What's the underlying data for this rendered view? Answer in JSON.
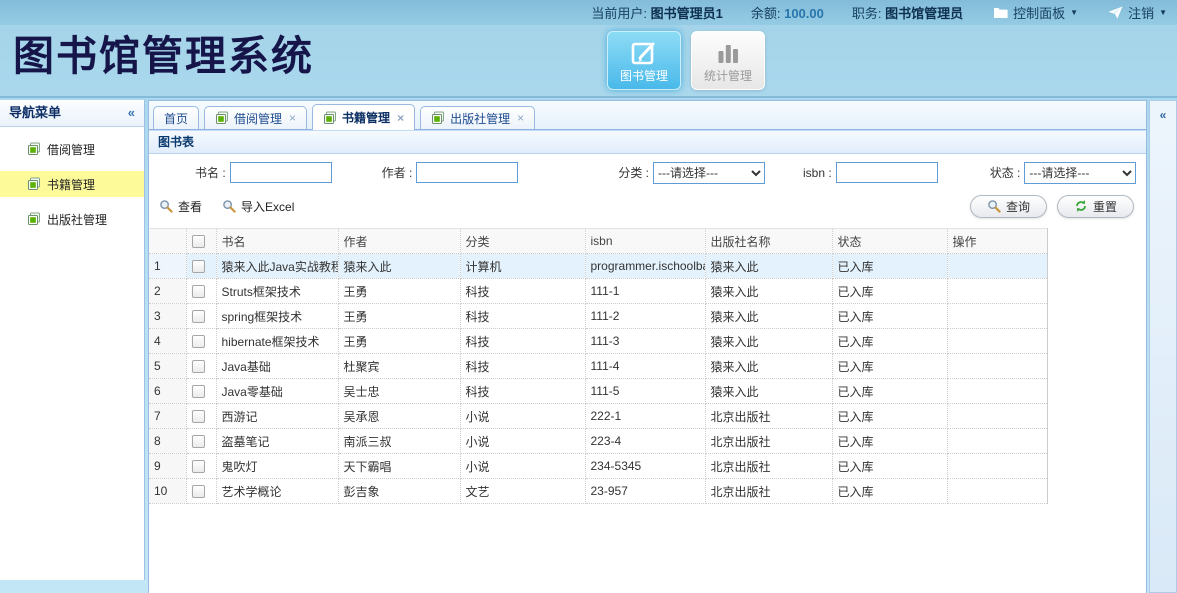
{
  "topbar": {
    "current_user_label": "当前用户:",
    "current_user": "图书管理员1",
    "balance_label": "余额:",
    "balance": "100.00",
    "role_label": "职务:",
    "role": "图书馆管理员",
    "control_panel": "控制面板",
    "logout": "注销",
    "caret_glyph": "▼"
  },
  "header": {
    "logo": "图书馆管理系统",
    "modules": [
      {
        "label": "图书管理",
        "icon": "edit",
        "active": true,
        "name": "books-module-button"
      },
      {
        "label": "统计管理",
        "icon": "bars",
        "active": false,
        "name": "stats-module-button"
      }
    ]
  },
  "sidebar": {
    "title": "导航菜单",
    "collapse_glyph": "«",
    "items": [
      {
        "label": "借阅管理",
        "active": false,
        "name": "sidebar-item-borrow-mgmt"
      },
      {
        "label": "书籍管理",
        "active": true,
        "name": "sidebar-item-book-mgmt"
      },
      {
        "label": "出版社管理",
        "active": false,
        "name": "sidebar-item-publisher-mgmt"
      }
    ]
  },
  "tabs": [
    {
      "label": "首页",
      "icon": false,
      "closable": false,
      "active": false,
      "name": "tab-home"
    },
    {
      "label": "借阅管理",
      "icon": true,
      "closable": true,
      "active": false,
      "name": "tab-borrow-mgmt"
    },
    {
      "label": "书籍管理",
      "icon": true,
      "closable": true,
      "active": true,
      "name": "tab-book-mgmt"
    },
    {
      "label": "出版社管理",
      "icon": true,
      "closable": true,
      "active": false,
      "name": "tab-publisher-mgmt"
    }
  ],
  "panel": {
    "title": "图书表"
  },
  "east": {
    "collapse_glyph": "«"
  },
  "search": {
    "fields": [
      {
        "label": "书名 :",
        "type": "input",
        "value": "",
        "name": "book-name-input"
      },
      {
        "label": "作者 :",
        "type": "input",
        "value": "",
        "name": "author-input"
      },
      {
        "label": "分类 :",
        "type": "select",
        "value": "---请选择---",
        "name": "category-select"
      },
      {
        "label": "isbn :",
        "type": "input",
        "value": "",
        "name": "isbn-input"
      },
      {
        "label": "状态 :",
        "type": "select",
        "value": "---请选择---",
        "name": "status-select"
      }
    ],
    "buttons_left": [
      {
        "label": "查看",
        "icon": "magnifier",
        "name": "view-button"
      },
      {
        "label": "导入Excel",
        "icon": "magnifier",
        "name": "import-excel-button"
      }
    ],
    "buttons_right": [
      {
        "label": "查询",
        "icon": "magnifier",
        "name": "query-button"
      },
      {
        "label": "重置",
        "icon": "refresh",
        "name": "reset-button"
      }
    ]
  },
  "table": {
    "columns": [
      "书名",
      "作者",
      "分类",
      "isbn",
      "出版社名称",
      "状态",
      "操作"
    ],
    "rows": [
      {
        "num": 1,
        "name": "猿来入此Java实战教程",
        "author": "猿来入此",
        "category": "计算机",
        "isbn": "programmer.ischoolba",
        "publisher": "猿来入此",
        "status": "已入库",
        "selected": true
      },
      {
        "num": 2,
        "name": "Struts框架技术",
        "author": "王勇",
        "category": "科技",
        "isbn": "111-1",
        "publisher": "猿来入此",
        "status": "已入库",
        "selected": false
      },
      {
        "num": 3,
        "name": "spring框架技术",
        "author": "王勇",
        "category": "科技",
        "isbn": "111-2",
        "publisher": "猿来入此",
        "status": "已入库",
        "selected": false
      },
      {
        "num": 4,
        "name": "hibernate框架技术",
        "author": "王勇",
        "category": "科技",
        "isbn": "111-3",
        "publisher": "猿来入此",
        "status": "已入库",
        "selected": false
      },
      {
        "num": 5,
        "name": "Java基础",
        "author": "杜聚宾",
        "category": "科技",
        "isbn": "111-4",
        "publisher": "猿来入此",
        "status": "已入库",
        "selected": false
      },
      {
        "num": 6,
        "name": "Java零基础",
        "author": "吴士忠",
        "category": "科技",
        "isbn": "111-5",
        "publisher": "猿来入此",
        "status": "已入库",
        "selected": false
      },
      {
        "num": 7,
        "name": "西游记",
        "author": "吴承恩",
        "category": "小说",
        "isbn": "222-1",
        "publisher": "北京出版社",
        "status": "已入库",
        "selected": false
      },
      {
        "num": 8,
        "name": "盗墓笔记",
        "author": "南派三叔",
        "category": "小说",
        "isbn": "223-4",
        "publisher": "北京出版社",
        "status": "已入库",
        "selected": false
      },
      {
        "num": 9,
        "name": "鬼吹灯",
        "author": "天下霸唱",
        "category": "小说",
        "isbn": "234-5345",
        "publisher": "北京出版社",
        "status": "已入库",
        "selected": false
      },
      {
        "num": 10,
        "name": "艺术学概论",
        "author": "彭吉象",
        "category": "文艺",
        "isbn": "23-957",
        "publisher": "北京出版社",
        "status": "已入库",
        "selected": false
      }
    ]
  },
  "colors": {
    "topbar_bg": "#8ac3de",
    "page_bg": "#aedcf0",
    "active_module_bg": "#49b9e9",
    "active_menu_bg": "#fdfa9a",
    "selected_row_bg": "#e4f2fd",
    "panel_border": "#97bbe2"
  }
}
